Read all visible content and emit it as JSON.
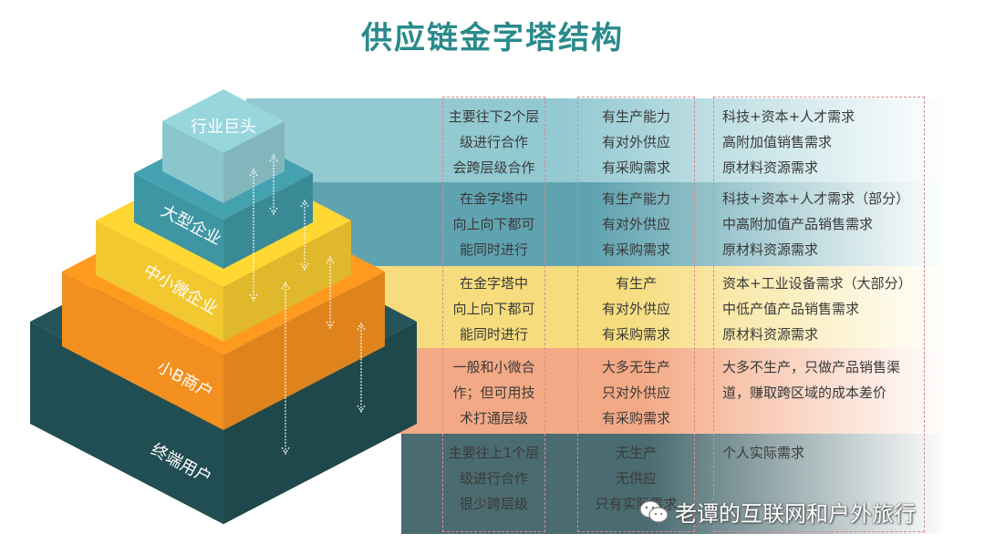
{
  "title": "供应链金字塔结构",
  "layers": [
    {
      "label": "行业巨头",
      "color": "#8cc6cd",
      "band": "#93c9d1",
      "collaboration": [
        "主要往下2个层",
        "级进行合作",
        "会跨层级合作"
      ],
      "capability": [
        "有生产能力",
        "有对外供应",
        "有采购需求"
      ],
      "needs": [
        "科技+资本+人才需求",
        "高附加值销售需求",
        "原材料资源需求"
      ]
    },
    {
      "label": "大型企业",
      "color": "#3f96a3",
      "band": "#5fa3b0",
      "collaboration": [
        "在金字塔中",
        "向上向下都可",
        "能同时进行"
      ],
      "capability": [
        "有生产能力",
        "有对外供应",
        "有采购需求"
      ],
      "needs": [
        "科技+资本+人才需求（部分）",
        "中高附加值产品销售需求",
        "原材料资源需求"
      ]
    },
    {
      "label": "中小微企业",
      "color": "#f2c830",
      "band": "#f6dc7c",
      "collaboration": [
        "在金字塔中",
        "向上向下都可",
        "能同时进行"
      ],
      "capability": [
        "有生产",
        "有对外供应",
        "有采购需求"
      ],
      "needs": [
        "资本+工业设备需求（大部分）",
        "中低产值产品销售需求",
        "原材料资源需求"
      ]
    },
    {
      "label": "小B商户",
      "color": "#f28f1f",
      "band": "#f3a985",
      "collaboration": [
        "一般和小微合",
        "作；但可用技",
        "术打通层级"
      ],
      "capability": [
        "大多无生产",
        "只对外供应",
        "有采购需求"
      ],
      "needs": [
        "大多不生产，只做产品销售渠",
        "道，赚取跨区域的成本差价"
      ]
    },
    {
      "label": "终端用户",
      "color": "#214e52",
      "band": "#4a6b70",
      "collaboration": [
        "主要往上1个层",
        "级进行合作",
        "很少跨层级"
      ],
      "capability": [
        "无生产",
        "无供应",
        "只有实际需求"
      ],
      "needs": [
        "个人实际需求"
      ]
    }
  ],
  "watermark": "老谭的互联网和户外旅行"
}
